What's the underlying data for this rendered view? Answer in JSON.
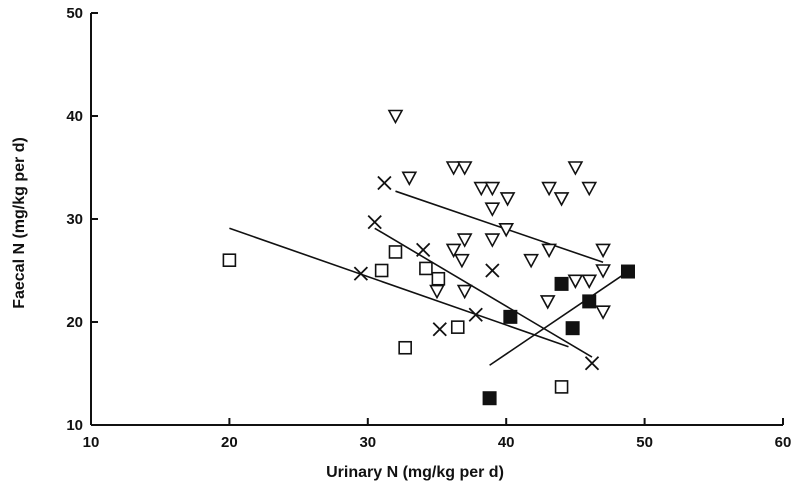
{
  "chart_data": {
    "type": "scatter",
    "title": "",
    "xlabel": "Urinary N (mg/kg per d)",
    "ylabel": "Faecal N (mg/kg per d)",
    "xlim": [
      10,
      60
    ],
    "ylim": [
      10,
      50
    ],
    "xticks": [
      "10",
      "20",
      "30",
      "40",
      "50",
      "60"
    ],
    "yticks": [
      "10",
      "20",
      "30",
      "40",
      "50"
    ],
    "grid": false,
    "legend": "none",
    "series": [
      {
        "marker": "open-triangle-down",
        "points": [
          [
            32,
            40
          ],
          [
            33,
            34
          ],
          [
            36.2,
            35
          ],
          [
            37,
            35
          ],
          [
            38.2,
            33
          ],
          [
            39,
            33
          ],
          [
            40.1,
            32
          ],
          [
            39,
            31
          ],
          [
            43.1,
            33
          ],
          [
            44,
            32
          ],
          [
            45,
            35
          ],
          [
            46,
            33
          ],
          [
            40,
            29
          ],
          [
            37,
            28
          ],
          [
            39,
            28
          ],
          [
            36.2,
            27
          ],
          [
            36.8,
            26
          ],
          [
            41.8,
            26
          ],
          [
            43.1,
            27
          ],
          [
            47,
            27
          ],
          [
            47,
            25
          ],
          [
            45,
            24
          ],
          [
            46,
            24
          ],
          [
            35,
            23
          ],
          [
            37,
            23
          ],
          [
            43,
            22
          ],
          [
            47,
            21
          ]
        ],
        "fit_line": [
          [
            32,
            32.7
          ],
          [
            47,
            25.8
          ]
        ]
      },
      {
        "marker": "cross",
        "points": [
          [
            31.2,
            33.5
          ],
          [
            30.5,
            29.7
          ],
          [
            34,
            27
          ],
          [
            39,
            25
          ],
          [
            29.5,
            24.7
          ],
          [
            37.8,
            20.7
          ],
          [
            35.2,
            19.3
          ],
          [
            46.2,
            16
          ]
        ],
        "fit_line": [
          [
            30.5,
            29.1
          ],
          [
            46.2,
            16.6
          ]
        ]
      },
      {
        "marker": "open-square",
        "points": [
          [
            20,
            26
          ],
          [
            32,
            26.8
          ],
          [
            31,
            25
          ],
          [
            34.2,
            25.2
          ],
          [
            35.1,
            24.2
          ],
          [
            36.5,
            19.5
          ],
          [
            32.7,
            17.5
          ],
          [
            44,
            13.7
          ]
        ],
        "fit_line": [
          [
            20,
            29.1
          ],
          [
            44.5,
            17.6
          ]
        ]
      },
      {
        "marker": "filled-square",
        "points": [
          [
            48.8,
            24.9
          ],
          [
            44,
            23.7
          ],
          [
            46,
            22
          ],
          [
            40.3,
            20.5
          ],
          [
            44.8,
            19.4
          ],
          [
            38.8,
            12.6
          ]
        ],
        "fit_line": [
          [
            38.8,
            15.8
          ],
          [
            48.8,
            24.9
          ]
        ]
      }
    ]
  }
}
